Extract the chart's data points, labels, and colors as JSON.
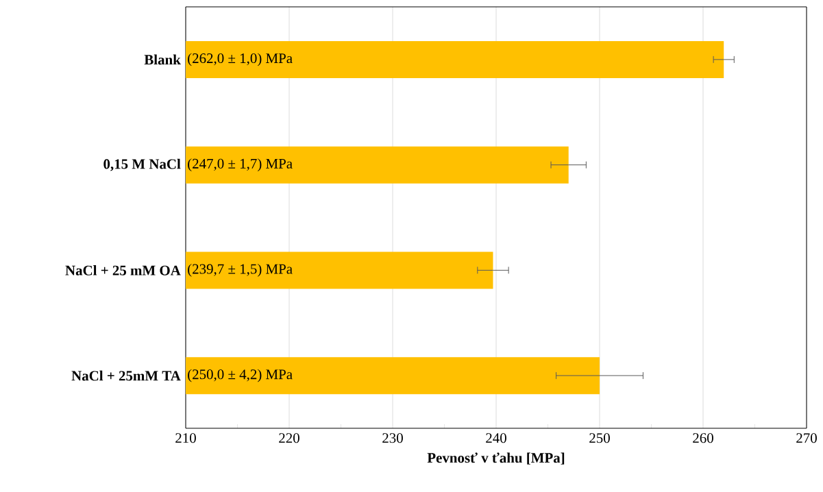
{
  "chart_data": {
    "type": "bar",
    "orientation": "horizontal",
    "xlabel": "Pevnosť v ťahu [MPa]",
    "categories": [
      "Blank",
      "0,15 M NaCl",
      "NaCl + 25 mM OA",
      "NaCl + 25mM TA"
    ],
    "values": [
      262.0,
      247.0,
      239.7,
      250.0
    ],
    "errors": [
      1.0,
      1.7,
      1.5,
      4.2
    ],
    "value_labels": [
      "(262,0 ± 1,0) MPa",
      "(247,0 ± 1,7) MPa",
      "(239,7 ± 1,5) MPa",
      "(250,0 ± 4,2) MPa"
    ],
    "color": "#ffc000",
    "xlim": [
      210,
      270
    ],
    "xticks": [
      210,
      220,
      230,
      240,
      250,
      260,
      270
    ],
    "grid": "x"
  }
}
